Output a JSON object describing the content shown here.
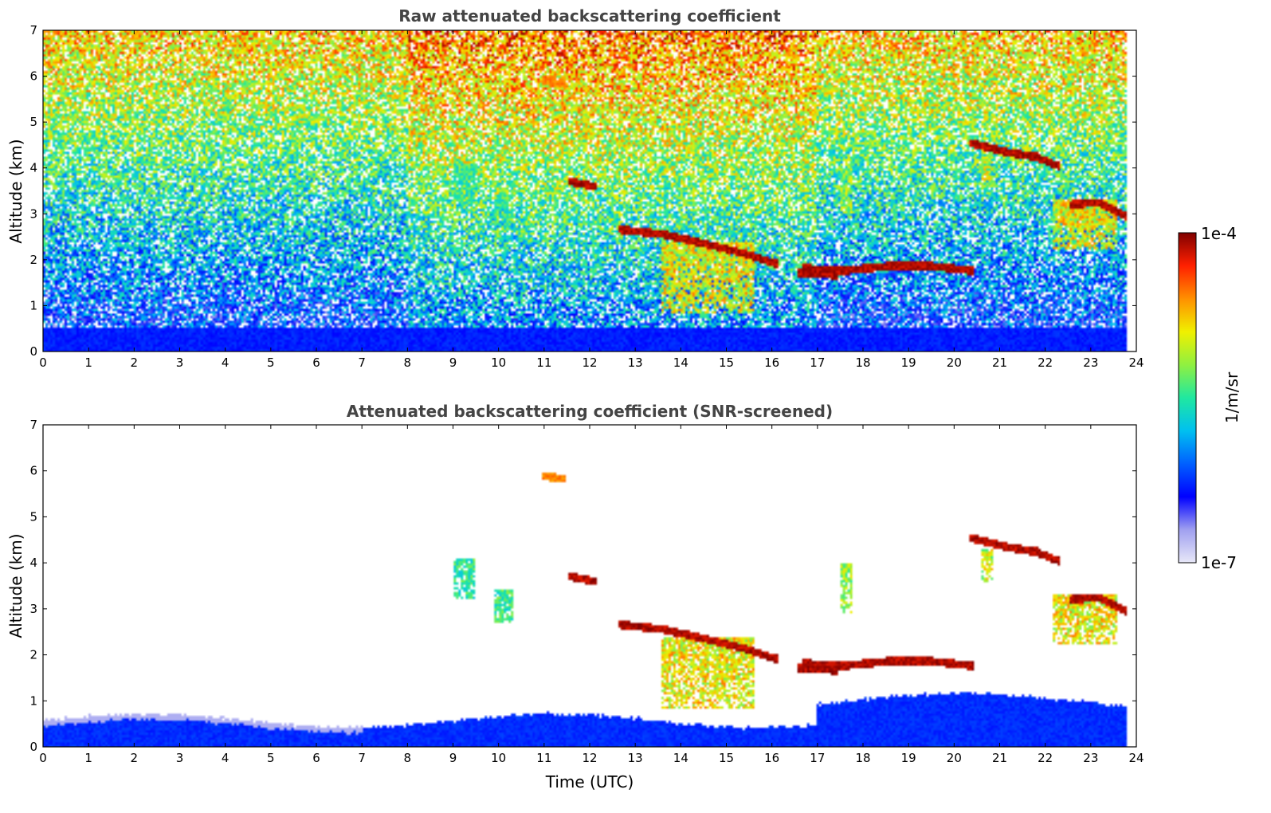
{
  "chart_data": [
    {
      "type": "heatmap",
      "title": "Raw attenuated backscattering coefficient",
      "xlabel": "",
      "ylabel": "Altitude (km)",
      "xlim": [
        0,
        24
      ],
      "ylim": [
        0,
        7
      ],
      "x_ticks": [
        "0",
        "1",
        "2",
        "3",
        "4",
        "5",
        "6",
        "7",
        "8",
        "9",
        "10",
        "11",
        "12",
        "13",
        "14",
        "15",
        "16",
        "17",
        "18",
        "19",
        "20",
        "21",
        "22",
        "23",
        "24"
      ],
      "y_ticks": [
        "0",
        "1",
        "2",
        "3",
        "4",
        "5",
        "6",
        "7"
      ],
      "background": "noisy",
      "features": [
        {
          "kind": "cloud-layer",
          "points": [
            [
              12.7,
              2.65
            ],
            [
              13.6,
              2.55
            ],
            [
              14.5,
              2.35
            ],
            [
              15.5,
              2.1
            ],
            [
              16.1,
              1.9
            ]
          ],
          "level": 1.0
        },
        {
          "kind": "cloud-layer",
          "points": [
            [
              16.7,
              1.8
            ],
            [
              17.6,
              1.75
            ],
            [
              18.6,
              1.85
            ],
            [
              19.5,
              1.85
            ],
            [
              20.4,
              1.75
            ]
          ],
          "level": 1.0
        },
        {
          "kind": "cloud-layer",
          "points": [
            [
              20.4,
              4.55
            ],
            [
              21.2,
              4.35
            ],
            [
              21.8,
              4.25
            ],
            [
              22.3,
              4.05
            ]
          ],
          "level": 1.0
        },
        {
          "kind": "cloud-layer",
          "points": [
            [
              22.6,
              3.2
            ],
            [
              23.2,
              3.25
            ],
            [
              23.8,
              2.95
            ]
          ],
          "level": 1.0
        },
        {
          "kind": "cloud-layer",
          "points": [
            [
              11.6,
              3.7
            ],
            [
              12.1,
              3.6
            ]
          ],
          "level": 1.0
        },
        {
          "kind": "cloud-layer",
          "points": [
            [
              11.0,
              5.9
            ],
            [
              11.4,
              5.85
            ]
          ],
          "level": 0.85
        },
        {
          "kind": "cloud-layer",
          "points": [
            [
              16.6,
              1.7
            ],
            [
              17.4,
              1.65
            ]
          ],
          "level": 1.0
        },
        {
          "kind": "virga",
          "x": [
            13.6,
            15.6
          ],
          "top": 2.4,
          "bottom": 0.8,
          "level": 0.75
        },
        {
          "kind": "virga",
          "x": [
            17.5,
            17.8
          ],
          "top": 4.0,
          "bottom": 2.9,
          "level": 0.65
        },
        {
          "kind": "virga",
          "x": [
            22.2,
            23.6
          ],
          "top": 3.3,
          "bottom": 2.2,
          "level": 0.75
        },
        {
          "kind": "virga",
          "x": [
            9.0,
            9.5
          ],
          "top": 4.1,
          "bottom": 3.2,
          "level": 0.55
        },
        {
          "kind": "virga",
          "x": [
            9.9,
            10.3
          ],
          "top": 3.4,
          "bottom": 2.7,
          "level": 0.55
        },
        {
          "kind": "virga",
          "x": [
            20.6,
            20.9
          ],
          "top": 4.3,
          "bottom": 3.6,
          "level": 0.7
        },
        {
          "kind": "boundary-layer",
          "top": 0.5,
          "level": 0.22
        }
      ]
    },
    {
      "type": "heatmap",
      "title": "Attenuated backscattering coefficient (SNR-screened)",
      "xlabel": "Time (UTC)",
      "ylabel": "Altitude (km)",
      "xlim": [
        0,
        24
      ],
      "ylim": [
        0,
        7
      ],
      "x_ticks": [
        "0",
        "1",
        "2",
        "3",
        "4",
        "5",
        "6",
        "7",
        "8",
        "9",
        "10",
        "11",
        "12",
        "13",
        "14",
        "15",
        "16",
        "17",
        "18",
        "19",
        "20",
        "21",
        "22",
        "23",
        "24"
      ],
      "y_ticks": [
        "0",
        "1",
        "2",
        "3",
        "4",
        "5",
        "6",
        "7"
      ],
      "background": "screened",
      "features": [
        {
          "kind": "cloud-layer",
          "points": [
            [
              12.7,
              2.65
            ],
            [
              13.6,
              2.55
            ],
            [
              14.5,
              2.35
            ],
            [
              15.5,
              2.1
            ],
            [
              16.1,
              1.9
            ]
          ],
          "level": 1.0
        },
        {
          "kind": "cloud-layer",
          "points": [
            [
              16.7,
              1.8
            ],
            [
              17.6,
              1.75
            ],
            [
              18.6,
              1.85
            ],
            [
              19.5,
              1.85
            ],
            [
              20.4,
              1.75
            ]
          ],
          "level": 1.0
        },
        {
          "kind": "cloud-layer",
          "points": [
            [
              20.4,
              4.55
            ],
            [
              21.2,
              4.35
            ],
            [
              21.8,
              4.25
            ],
            [
              22.3,
              4.05
            ]
          ],
          "level": 1.0
        },
        {
          "kind": "cloud-layer",
          "points": [
            [
              22.6,
              3.2
            ],
            [
              23.2,
              3.25
            ],
            [
              23.8,
              2.95
            ]
          ],
          "level": 1.0
        },
        {
          "kind": "cloud-layer",
          "points": [
            [
              11.6,
              3.7
            ],
            [
              12.1,
              3.6
            ]
          ],
          "level": 1.0
        },
        {
          "kind": "cloud-layer",
          "points": [
            [
              11.0,
              5.9
            ],
            [
              11.4,
              5.85
            ]
          ],
          "level": 0.85
        },
        {
          "kind": "cloud-layer",
          "points": [
            [
              16.6,
              1.7
            ],
            [
              17.4,
              1.65
            ]
          ],
          "level": 1.0
        },
        {
          "kind": "virga",
          "x": [
            13.6,
            15.6
          ],
          "top": 2.4,
          "bottom": 0.8,
          "level": 0.75
        },
        {
          "kind": "virga",
          "x": [
            17.5,
            17.8
          ],
          "top": 4.0,
          "bottom": 2.9,
          "level": 0.65
        },
        {
          "kind": "virga",
          "x": [
            22.2,
            23.6
          ],
          "top": 3.3,
          "bottom": 2.2,
          "level": 0.75
        },
        {
          "kind": "virga",
          "x": [
            9.0,
            9.5
          ],
          "top": 4.1,
          "bottom": 3.2,
          "level": 0.55
        },
        {
          "kind": "virga",
          "x": [
            9.9,
            10.3
          ],
          "top": 3.4,
          "bottom": 2.7,
          "level": 0.55
        },
        {
          "kind": "virga",
          "x": [
            20.6,
            20.9
          ],
          "top": 4.3,
          "bottom": 3.6,
          "level": 0.7
        },
        {
          "kind": "boundary-layer",
          "top": 0.7,
          "level": 0.22
        }
      ]
    }
  ],
  "colorbar": {
    "min_label": "1e-7",
    "max_label": "1e-4",
    "unit": "1/m/sr",
    "colors": [
      "#e8e8f8",
      "#a0a0f0",
      "#0000ff",
      "#0060ff",
      "#00c0f0",
      "#20e8a0",
      "#90f040",
      "#f0f000",
      "#ff9000",
      "#ff2000",
      "#800000"
    ]
  }
}
